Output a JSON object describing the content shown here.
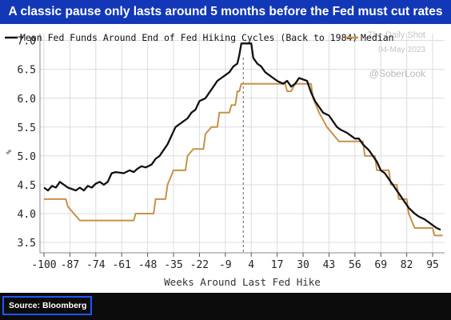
{
  "header": {
    "title": "A classic pause only lasts around 5 months before the Fed must cut rates"
  },
  "watermark": {
    "line1": "The Daily Shot",
    "line2": "04-May-2023",
    "handle": "@SoberLook"
  },
  "footer": {
    "source": "Source: Bloomberg"
  },
  "colors": {
    "title_bar": "#1238b8",
    "mean_line": "#111111",
    "median_line": "#c8914a",
    "footer_bg": "#0c0c0c",
    "source_border": "#1f56ff"
  },
  "chart_data": {
    "type": "line",
    "title": "",
    "xlabel": "Weeks Around Last Fed Hike",
    "ylabel": "%",
    "xlim": [
      -102,
      101
    ],
    "ylim": [
      3.32,
      7.12
    ],
    "x_ticks": [
      "-100",
      "-87",
      "-74",
      "-61",
      "-48",
      "-35",
      "-22",
      "-9",
      "4",
      "17",
      "30",
      "43",
      "56",
      "69",
      "82",
      "95"
    ],
    "y_ticks": [
      "7.0",
      "6.5",
      "6.0",
      "5.5",
      "5.0",
      "4.5",
      "4.0",
      "3.5"
    ],
    "vline_x": 0,
    "legend_position": "top",
    "series": [
      {
        "name": "Mean Fed Funds Around End of Fed Hiking Cycles (Back to 1984)",
        "points": [
          [
            -100,
            4.45
          ],
          [
            -98,
            4.4
          ],
          [
            -96,
            4.48
          ],
          [
            -94,
            4.45
          ],
          [
            -92,
            4.55
          ],
          [
            -90,
            4.5
          ],
          [
            -88,
            4.45
          ],
          [
            -84,
            4.4
          ],
          [
            -82,
            4.45
          ],
          [
            -80,
            4.4
          ],
          [
            -78,
            4.48
          ],
          [
            -76,
            4.45
          ],
          [
            -74,
            4.52
          ],
          [
            -72,
            4.55
          ],
          [
            -70,
            4.5
          ],
          [
            -68,
            4.55
          ],
          [
            -66,
            4.7
          ],
          [
            -64,
            4.72
          ],
          [
            -60,
            4.7
          ],
          [
            -57,
            4.75
          ],
          [
            -55,
            4.72
          ],
          [
            -53,
            4.78
          ],
          [
            -51,
            4.82
          ],
          [
            -49,
            4.8
          ],
          [
            -46,
            4.85
          ],
          [
            -44,
            4.95
          ],
          [
            -42,
            5.0
          ],
          [
            -40,
            5.1
          ],
          [
            -38,
            5.2
          ],
          [
            -36,
            5.35
          ],
          [
            -34,
            5.5
          ],
          [
            -32,
            5.55
          ],
          [
            -30,
            5.6
          ],
          [
            -28,
            5.65
          ],
          [
            -26,
            5.75
          ],
          [
            -24,
            5.8
          ],
          [
            -22,
            5.95
          ],
          [
            -19,
            6.0
          ],
          [
            -17,
            6.1
          ],
          [
            -15,
            6.2
          ],
          [
            -13,
            6.3
          ],
          [
            -11,
            6.35
          ],
          [
            -9,
            6.4
          ],
          [
            -7,
            6.45
          ],
          [
            -5,
            6.55
          ],
          [
            -3,
            6.6
          ],
          [
            -2,
            6.75
          ],
          [
            -1,
            6.95
          ],
          [
            4,
            6.95
          ],
          [
            5,
            6.7
          ],
          [
            7,
            6.6
          ],
          [
            9,
            6.55
          ],
          [
            11,
            6.45
          ],
          [
            13,
            6.4
          ],
          [
            15,
            6.35
          ],
          [
            17,
            6.3
          ],
          [
            20,
            6.25
          ],
          [
            22,
            6.3
          ],
          [
            24,
            6.2
          ],
          [
            26,
            6.25
          ],
          [
            28,
            6.35
          ],
          [
            32,
            6.3
          ],
          [
            34,
            6.1
          ],
          [
            36,
            5.95
          ],
          [
            38,
            5.85
          ],
          [
            40,
            5.75
          ],
          [
            43,
            5.7
          ],
          [
            45,
            5.6
          ],
          [
            47,
            5.5
          ],
          [
            49,
            5.45
          ],
          [
            52,
            5.4
          ],
          [
            54,
            5.35
          ],
          [
            56,
            5.3
          ],
          [
            58,
            5.3
          ],
          [
            60,
            5.2
          ],
          [
            63,
            5.1
          ],
          [
            65,
            5.0
          ],
          [
            67,
            4.9
          ],
          [
            69,
            4.75
          ],
          [
            71,
            4.7
          ],
          [
            73,
            4.6
          ],
          [
            75,
            4.5
          ],
          [
            77,
            4.4
          ],
          [
            79,
            4.3
          ],
          [
            81,
            4.2
          ],
          [
            83,
            4.1
          ],
          [
            86,
            4.0
          ],
          [
            88,
            3.95
          ],
          [
            91,
            3.9
          ],
          [
            93,
            3.85
          ],
          [
            95,
            3.8
          ],
          [
            97,
            3.75
          ],
          [
            99,
            3.72
          ]
        ]
      },
      {
        "name": "Median",
        "points": [
          [
            -100,
            4.25
          ],
          [
            -89,
            4.25
          ],
          [
            -88,
            4.12
          ],
          [
            -85,
            4.0
          ],
          [
            -82,
            3.88
          ],
          [
            -63,
            3.88
          ],
          [
            -55,
            3.88
          ],
          [
            -54,
            4.0
          ],
          [
            -45,
            4.0
          ],
          [
            -44,
            4.25
          ],
          [
            -39,
            4.25
          ],
          [
            -38,
            4.5
          ],
          [
            -35,
            4.75
          ],
          [
            -29,
            4.75
          ],
          [
            -28,
            5.0
          ],
          [
            -25,
            5.12
          ],
          [
            -20,
            5.12
          ],
          [
            -19,
            5.38
          ],
          [
            -16,
            5.5
          ],
          [
            -13,
            5.5
          ],
          [
            -12,
            5.75
          ],
          [
            -7,
            5.75
          ],
          [
            -6,
            5.88
          ],
          [
            -4,
            5.88
          ],
          [
            -3,
            6.12
          ],
          [
            -2,
            6.12
          ],
          [
            -1,
            6.25
          ],
          [
            21,
            6.25
          ],
          [
            22,
            6.12
          ],
          [
            24,
            6.12
          ],
          [
            26,
            6.25
          ],
          [
            34,
            6.25
          ],
          [
            35,
            6.0
          ],
          [
            38,
            5.75
          ],
          [
            42,
            5.5
          ],
          [
            48,
            5.25
          ],
          [
            60,
            5.25
          ],
          [
            61,
            5.0
          ],
          [
            66,
            5.0
          ],
          [
            67,
            4.75
          ],
          [
            73,
            4.75
          ],
          [
            74,
            4.5
          ],
          [
            77,
            4.5
          ],
          [
            78,
            4.25
          ],
          [
            82,
            4.25
          ],
          [
            83,
            4.0
          ],
          [
            86,
            3.75
          ],
          [
            95,
            3.75
          ],
          [
            96,
            3.62
          ],
          [
            100,
            3.62
          ]
        ]
      }
    ]
  }
}
